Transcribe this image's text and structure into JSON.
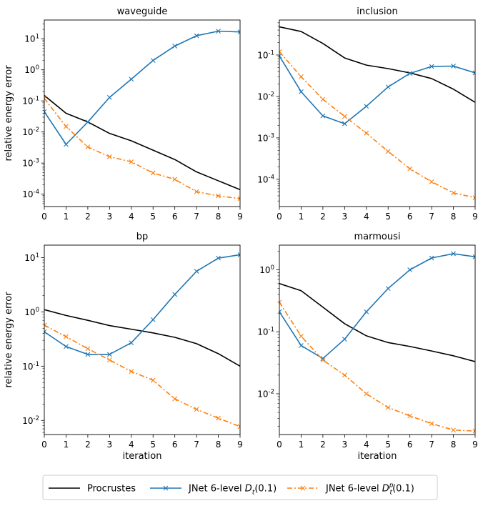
{
  "colors": {
    "procrustes": "#000000",
    "dt": "#1f77b4",
    "dtp": "#ff7f0e"
  },
  "legend": {
    "placement": "bottom-center",
    "entries": [
      {
        "label": "Procrustes",
        "color": "#000000",
        "style": "solid"
      },
      {
        "label_main": "JNet 6-level ",
        "label_math": "D",
        "label_sub": "t",
        "label_tail": "(0.1)",
        "color": "#1f77b4",
        "style": "solid-x"
      },
      {
        "label_main": "JNet 6-level ",
        "label_math": "D",
        "label_sub": "t",
        "label_sup": "p",
        "label_tail": "(0.1)",
        "color": "#ff7f0e",
        "style": "dashdot-x"
      }
    ]
  },
  "chart_data": [
    {
      "type": "line",
      "title": "waveguide",
      "xlabel": "",
      "ylabel": "relative energy error",
      "x": [
        0,
        1,
        2,
        3,
        4,
        5,
        6,
        7,
        8,
        9
      ],
      "xlim": [
        0,
        9
      ],
      "yscale": "log",
      "ylim": [
        4e-05,
        40
      ],
      "yticks": [
        0.0001,
        0.001,
        0.01,
        0.1,
        1,
        10
      ],
      "ytick_labels": [
        [
          "10",
          "-4"
        ],
        [
          "10",
          "-3"
        ],
        [
          "10",
          "-2"
        ],
        [
          "10",
          "-1"
        ],
        [
          "10",
          "0"
        ],
        [
          "10",
          "1"
        ]
      ],
      "grid": false,
      "series": [
        {
          "name": "Procrustes",
          "values": [
            0.15,
            0.04,
            0.021,
            0.009,
            0.0052,
            0.0026,
            0.0013,
            0.00052,
            0.00027,
            0.00014
          ]
        },
        {
          "name": "JNet 6-level Dt(0.1)",
          "values": [
            0.045,
            0.004,
            0.021,
            0.13,
            0.5,
            2.0,
            5.8,
            12.5,
            17.5,
            16.5
          ]
        },
        {
          "name": "JNet 6-level Dtp(0.1)",
          "values": [
            0.12,
            0.015,
            0.0033,
            0.0016,
            0.0011,
            0.00048,
            0.0003,
            0.00012,
            8.8e-05,
            7.2e-05
          ]
        }
      ]
    },
    {
      "type": "line",
      "title": "inclusion",
      "xlabel": "",
      "ylabel": "",
      "x": [
        0,
        1,
        2,
        3,
        4,
        5,
        6,
        7,
        8,
        9
      ],
      "xlim": [
        0,
        9
      ],
      "yscale": "log",
      "ylim": [
        2.2e-05,
        0.7
      ],
      "yticks": [
        0.0001,
        0.001,
        0.01,
        0.1
      ],
      "ytick_labels": [
        [
          "10",
          "-4"
        ],
        [
          "10",
          "-3"
        ],
        [
          "10",
          "-2"
        ],
        [
          "10",
          "-1"
        ]
      ],
      "grid": false,
      "series": [
        {
          "name": "Procrustes",
          "values": [
            0.48,
            0.37,
            0.19,
            0.085,
            0.057,
            0.047,
            0.037,
            0.027,
            0.015,
            0.0072
          ]
        },
        {
          "name": "JNet 6-level Dt(0.1)",
          "values": [
            0.095,
            0.013,
            0.0034,
            0.0022,
            0.0058,
            0.017,
            0.036,
            0.053,
            0.054,
            0.037
          ]
        },
        {
          "name": "JNet 6-level Dtp(0.1)",
          "values": [
            0.12,
            0.03,
            0.0085,
            0.0033,
            0.0013,
            0.00047,
            0.00018,
            8.7e-05,
            4.7e-05,
            3.6e-05
          ]
        }
      ]
    },
    {
      "type": "line",
      "title": "bp",
      "xlabel": "iteration",
      "ylabel": "relative energy error",
      "x": [
        0,
        1,
        2,
        3,
        4,
        5,
        6,
        7,
        8,
        9
      ],
      "xlim": [
        0,
        9
      ],
      "yscale": "log",
      "ylim": [
        0.0055,
        17
      ],
      "yticks": [
        0.01,
        0.1,
        1,
        10
      ],
      "ytick_labels": [
        [
          "10",
          "-2"
        ],
        [
          "10",
          "-1"
        ],
        [
          "10",
          "0"
        ],
        [
          "10",
          "1"
        ]
      ],
      "grid": false,
      "series": [
        {
          "name": "Procrustes",
          "values": [
            1.1,
            0.86,
            0.7,
            0.56,
            0.48,
            0.41,
            0.34,
            0.26,
            0.17,
            0.1
          ]
        },
        {
          "name": "JNet 6-level Dt(0.1)",
          "values": [
            0.43,
            0.23,
            0.165,
            0.165,
            0.27,
            0.72,
            2.1,
            5.6,
            9.8,
            11.3
          ]
        },
        {
          "name": "JNet 6-level Dtp(0.1)",
          "values": [
            0.57,
            0.35,
            0.21,
            0.13,
            0.08,
            0.055,
            0.025,
            0.016,
            0.011,
            0.0077
          ]
        }
      ]
    },
    {
      "type": "line",
      "title": "marmousi",
      "xlabel": "iteration",
      "ylabel": "",
      "x": [
        0,
        1,
        2,
        3,
        4,
        5,
        6,
        7,
        8,
        9
      ],
      "xlim": [
        0,
        9
      ],
      "yscale": "log",
      "ylim": [
        0.0022,
        2.5
      ],
      "yticks": [
        0.01,
        0.1,
        1
      ],
      "ytick_labels": [
        [
          "10",
          "-2"
        ],
        [
          "10",
          "-1"
        ],
        [
          "10",
          "0"
        ]
      ],
      "grid": false,
      "series": [
        {
          "name": "Procrustes",
          "values": [
            0.6,
            0.46,
            0.25,
            0.135,
            0.086,
            0.067,
            0.058,
            0.049,
            0.041,
            0.033
          ]
        },
        {
          "name": "JNet 6-level Dt(0.1)",
          "values": [
            0.21,
            0.06,
            0.037,
            0.076,
            0.21,
            0.5,
            1.0,
            1.55,
            1.82,
            1.62
          ]
        },
        {
          "name": "JNet 6-level Dtp(0.1)",
          "values": [
            0.3,
            0.085,
            0.035,
            0.02,
            0.01,
            0.006,
            0.0044,
            0.0033,
            0.0026,
            0.0025
          ]
        }
      ]
    }
  ]
}
